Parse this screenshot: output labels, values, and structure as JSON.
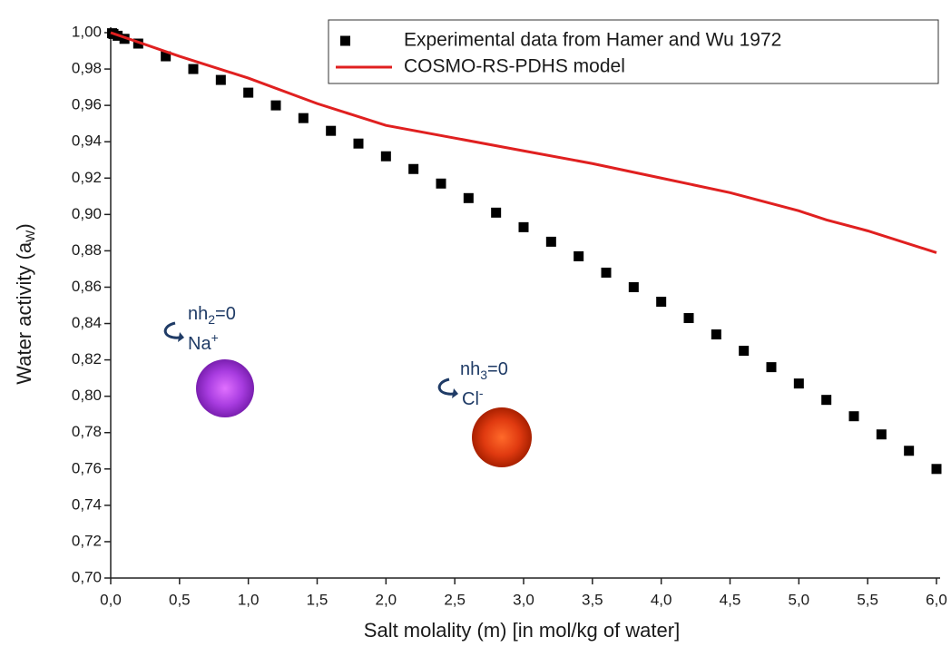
{
  "chart_data": {
    "type": "scatter",
    "x_label": "Salt molality (m) [in mol/kg of water]",
    "y_label": {
      "main": "Water activity (a",
      "sub": "W",
      "end": ")"
    },
    "xlim": [
      0,
      6
    ],
    "ylim": [
      0.7,
      1.0
    ],
    "xticks": [
      {
        "value": 0,
        "label": "0,0"
      },
      {
        "value": 0.5,
        "label": "0,5"
      },
      {
        "value": 1,
        "label": "1,0"
      },
      {
        "value": 1.5,
        "label": "1,5"
      },
      {
        "value": 2,
        "label": "2,0"
      },
      {
        "value": 2.5,
        "label": "2,5"
      },
      {
        "value": 3,
        "label": "3,0"
      },
      {
        "value": 3.5,
        "label": "3,5"
      },
      {
        "value": 4,
        "label": "4,0"
      },
      {
        "value": 4.5,
        "label": "4,5"
      },
      {
        "value": 5,
        "label": "5,0"
      },
      {
        "value": 5.5,
        "label": "5,5"
      },
      {
        "value": 6,
        "label": "6,0"
      }
    ],
    "yticks": [
      {
        "value": 0.7,
        "label": "0,70"
      },
      {
        "value": 0.72,
        "label": "0,72"
      },
      {
        "value": 0.74,
        "label": "0,74"
      },
      {
        "value": 0.76,
        "label": "0,76"
      },
      {
        "value": 0.78,
        "label": "0,78"
      },
      {
        "value": 0.8,
        "label": "0,80"
      },
      {
        "value": 0.82,
        "label": "0,82"
      },
      {
        "value": 0.84,
        "label": "0,84"
      },
      {
        "value": 0.86,
        "label": "0,86"
      },
      {
        "value": 0.88,
        "label": "0,88"
      },
      {
        "value": 0.9,
        "label": "0,90"
      },
      {
        "value": 0.92,
        "label": "0,92"
      },
      {
        "value": 0.94,
        "label": "0,94"
      },
      {
        "value": 0.96,
        "label": "0,96"
      },
      {
        "value": 0.98,
        "label": "0,98"
      },
      {
        "value": 1.0,
        "label": "1,00"
      }
    ],
    "legend": "upper right",
    "series": [
      {
        "name": "Experimental data from Hamer and Wu 1972",
        "color": "#000000",
        "mode": "markers",
        "x": [
          0.01,
          0.02,
          0.05,
          0.1,
          0.2,
          0.4,
          0.6,
          0.8,
          1.0,
          1.2,
          1.4,
          1.6,
          1.8,
          2.0,
          2.2,
          2.4,
          2.6,
          2.8,
          3.0,
          3.2,
          3.4,
          3.6,
          3.8,
          4.0,
          4.2,
          4.4,
          4.6,
          4.8,
          5.0,
          5.2,
          5.4,
          5.6,
          5.8,
          6.0
        ],
        "values": [
          0.9997,
          0.9993,
          0.9983,
          0.9966,
          0.994,
          0.987,
          0.98,
          0.974,
          0.967,
          0.96,
          0.953,
          0.946,
          0.939,
          0.932,
          0.925,
          0.917,
          0.909,
          0.901,
          0.893,
          0.885,
          0.877,
          0.868,
          0.86,
          0.852,
          0.843,
          0.834,
          0.825,
          0.816,
          0.807,
          0.798,
          0.789,
          0.779,
          0.77,
          0.76
        ]
      },
      {
        "name": "COSMO-RS-PDHS model",
        "color": "#e02020",
        "mode": "line",
        "x": [
          0,
          0.5,
          1.0,
          1.5,
          2.0,
          2.5,
          3.0,
          3.5,
          4.0,
          4.5,
          5.0,
          5.2,
          5.5,
          6.0
        ],
        "values": [
          1.0,
          0.987,
          0.975,
          0.961,
          0.949,
          0.942,
          0.935,
          0.928,
          0.92,
          0.912,
          0.902,
          0.897,
          0.891,
          0.879
        ]
      }
    ],
    "annotations": [
      {
        "label": {
          "base": "nh",
          "sub": "2",
          "rest": "=0"
        },
        "ion": {
          "base": "Na",
          "sup": "+"
        }
      },
      {
        "label": {
          "base": "nh",
          "sub": "3",
          "rest": "=0"
        },
        "ion": {
          "base": "Cl",
          "sup": "-"
        }
      }
    ]
  }
}
